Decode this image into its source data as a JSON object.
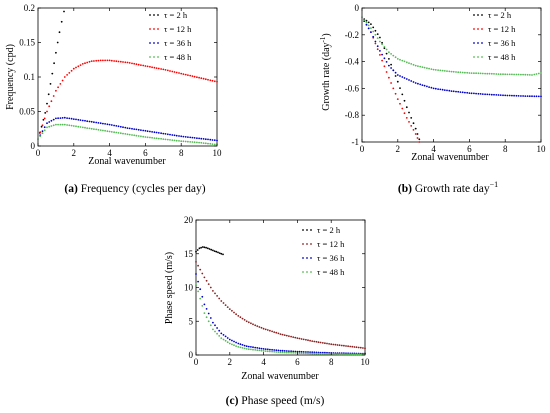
{
  "chart_data": [
    {
      "type": "scatter",
      "caption_label": "(a)",
      "caption_text": "Frequency (cycles per day)",
      "xlabel": "Zonal wavenumber",
      "ylabel": "Frequency (cpd)",
      "xlim": [
        0,
        10
      ],
      "ylim": [
        0,
        0.2
      ],
      "xticks": [
        "0",
        "2",
        "4",
        "6",
        "8",
        "10"
      ],
      "yticks": [
        "0",
        "0.05",
        "0.1",
        "0.15",
        "0.2"
      ],
      "xtick_values": [
        0,
        2,
        4,
        6,
        8,
        10
      ],
      "ytick_values": [
        0,
        0.05,
        0.1,
        0.15,
        0.2
      ],
      "legend_position": "top-right",
      "series": [
        {
          "name": "τ = 2 h",
          "color": "#000000",
          "points": [
            [
              0,
              0.01
            ],
            [
              0.2,
              0.028
            ],
            [
              0.4,
              0.048
            ],
            [
              0.6,
              0.075
            ],
            [
              0.8,
              0.105
            ],
            [
              1.0,
              0.135
            ],
            [
              1.2,
              0.165
            ],
            [
              1.45,
              0.195
            ]
          ]
        },
        {
          "name": "τ = 12 h",
          "color": "#ff0000",
          "points": [
            [
              0,
              0.01
            ],
            [
              0.5,
              0.05
            ],
            [
              1,
              0.08
            ],
            [
              1.5,
              0.1
            ],
            [
              2,
              0.112
            ],
            [
              2.5,
              0.119
            ],
            [
              3,
              0.123
            ],
            [
              3.5,
              0.124
            ],
            [
              4,
              0.124
            ],
            [
              5,
              0.121
            ],
            [
              6,
              0.116
            ],
            [
              7,
              0.111
            ],
            [
              8,
              0.105
            ],
            [
              9,
              0.099
            ],
            [
              10,
              0.093
            ]
          ]
        },
        {
          "name": "τ = 36 h",
          "color": "#0000cc",
          "points": [
            [
              0,
              0.01
            ],
            [
              0.5,
              0.033
            ],
            [
              1,
              0.04
            ],
            [
              1.5,
              0.041
            ],
            [
              2,
              0.039
            ],
            [
              3,
              0.035
            ],
            [
              4,
              0.031
            ],
            [
              5,
              0.026
            ],
            [
              6,
              0.022
            ],
            [
              7,
              0.018
            ],
            [
              8,
              0.014
            ],
            [
              9,
              0.011
            ],
            [
              10,
              0.008
            ]
          ]
        },
        {
          "name": "τ = 48 h",
          "color": "#55bb55",
          "points": [
            [
              0,
              0.01
            ],
            [
              0.5,
              0.027
            ],
            [
              1,
              0.031
            ],
            [
              1.5,
              0.031
            ],
            [
              2,
              0.029
            ],
            [
              3,
              0.025
            ],
            [
              4,
              0.021
            ],
            [
              5,
              0.017
            ],
            [
              6,
              0.013
            ],
            [
              7,
              0.01
            ],
            [
              8,
              0.007
            ],
            [
              9,
              0.005
            ],
            [
              10,
              0.002
            ]
          ]
        }
      ]
    },
    {
      "type": "scatter",
      "caption_label": "(b)",
      "caption_text": "Growth rate day",
      "caption_sup": "−1",
      "xlabel": "Zonal wavenumber",
      "ylabel": "Growth rate (day",
      "ylabel_sup": "-1",
      "ylabel_close": ")",
      "xlim": [
        0,
        10
      ],
      "ylim": [
        -1,
        0
      ],
      "xticks": [
        "0",
        "2",
        "4",
        "6",
        "8",
        "10"
      ],
      "yticks": [
        "0",
        "-0.2",
        "-0.4",
        "-0.6",
        "-0.8",
        "-1"
      ],
      "xtick_values": [
        0,
        2,
        4,
        6,
        8,
        10
      ],
      "ytick_values": [
        0,
        -0.2,
        -0.4,
        -0.6,
        -0.8,
        -1
      ],
      "legend_position": "top-right",
      "series": [
        {
          "name": "τ = 2 h",
          "color": "#000000",
          "points": [
            [
              0,
              -0.07
            ],
            [
              0.5,
              -0.12
            ],
            [
              1,
              -0.22
            ],
            [
              1.5,
              -0.38
            ],
            [
              2,
              -0.55
            ],
            [
              2.5,
              -0.74
            ],
            [
              3,
              -0.9
            ],
            [
              3.2,
              -0.98
            ]
          ]
        },
        {
          "name": "τ = 12 h",
          "color": "#ff0000",
          "points": [
            [
              0,
              -0.07
            ],
            [
              0.5,
              -0.18
            ],
            [
              1,
              -0.35
            ],
            [
              1.5,
              -0.52
            ],
            [
              2,
              -0.68
            ],
            [
              2.5,
              -0.82
            ],
            [
              3,
              -0.94
            ],
            [
              3.2,
              -1.0
            ]
          ]
        },
        {
          "name": "τ = 36 h",
          "color": "#0000cc",
          "points": [
            [
              0,
              -0.07
            ],
            [
              0.5,
              -0.18
            ],
            [
              1,
              -0.32
            ],
            [
              1.5,
              -0.43
            ],
            [
              2,
              -0.5
            ],
            [
              3,
              -0.56
            ],
            [
              4,
              -0.6
            ],
            [
              5,
              -0.62
            ],
            [
              6,
              -0.635
            ],
            [
              7,
              -0.645
            ],
            [
              8,
              -0.652
            ],
            [
              9,
              -0.657
            ],
            [
              10,
              -0.66
            ]
          ]
        },
        {
          "name": "τ = 48 h",
          "color": "#55bb55",
          "points": [
            [
              0,
              -0.07
            ],
            [
              0.5,
              -0.15
            ],
            [
              1,
              -0.25
            ],
            [
              1.5,
              -0.33
            ],
            [
              2,
              -0.38
            ],
            [
              3,
              -0.43
            ],
            [
              4,
              -0.46
            ],
            [
              5,
              -0.475
            ],
            [
              6,
              -0.485
            ],
            [
              7,
              -0.49
            ],
            [
              8,
              -0.495
            ],
            [
              9,
              -0.497
            ],
            [
              9.5,
              -0.5
            ],
            [
              10,
              -0.485
            ]
          ]
        }
      ]
    },
    {
      "type": "scatter",
      "caption_label": "(c)",
      "caption_text": "Phase speed (m/s)",
      "xlabel": "Zonal wavenumber",
      "ylabel": "Phase speed (m/s)",
      "xlim": [
        0,
        10
      ],
      "ylim": [
        0,
        20
      ],
      "xticks": [
        "0",
        "2",
        "4",
        "6",
        "8",
        "10"
      ],
      "yticks": [
        "0",
        "5",
        "10",
        "15",
        "20"
      ],
      "xtick_values": [
        0,
        2,
        4,
        6,
        8,
        10
      ],
      "ytick_values": [
        0,
        5,
        10,
        15,
        20
      ],
      "legend_position": "top-right",
      "series": [
        {
          "name": "τ = 2 h",
          "color": "#000000",
          "points": [
            [
              0,
              15.3
            ],
            [
              0.2,
              15.8
            ],
            [
              0.4,
              16.0
            ],
            [
              0.6,
              15.9
            ],
            [
              0.8,
              15.7
            ],
            [
              1.0,
              15.5
            ],
            [
              1.2,
              15.3
            ],
            [
              1.4,
              15.1
            ],
            [
              1.6,
              14.9
            ]
          ]
        },
        {
          "name": "τ = 12 h",
          "color": "#8b2020",
          "points": [
            [
              0,
              13.8
            ],
            [
              0.5,
              11.5
            ],
            [
              1,
              9.5
            ],
            [
              1.5,
              8.0
            ],
            [
              2,
              6.8
            ],
            [
              2.5,
              5.8
            ],
            [
              3,
              5.0
            ],
            [
              3.5,
              4.4
            ],
            [
              4,
              3.9
            ],
            [
              5,
              3.1
            ],
            [
              6,
              2.5
            ],
            [
              7,
              2.0
            ],
            [
              8,
              1.6
            ],
            [
              9,
              1.3
            ],
            [
              10,
              1.0
            ]
          ]
        },
        {
          "name": "τ = 36 h",
          "color": "#0000cc",
          "points": [
            [
              0,
              12.0
            ],
            [
              0.5,
              7.5
            ],
            [
              1,
              4.8
            ],
            [
              1.5,
              3.2
            ],
            [
              2,
              2.3
            ],
            [
              2.5,
              1.7
            ],
            [
              3,
              1.3
            ],
            [
              4,
              0.9
            ],
            [
              5,
              0.65
            ],
            [
              6,
              0.5
            ],
            [
              7,
              0.4
            ],
            [
              8,
              0.3
            ],
            [
              9,
              0.25
            ],
            [
              10,
              0.2
            ]
          ]
        },
        {
          "name": "τ = 48 h",
          "color": "#55bb55",
          "points": [
            [
              0,
              10.5
            ],
            [
              0.5,
              6.2
            ],
            [
              1,
              3.8
            ],
            [
              1.5,
              2.5
            ],
            [
              2,
              1.7
            ],
            [
              2.5,
              1.2
            ],
            [
              3,
              0.9
            ],
            [
              4,
              0.6
            ],
            [
              5,
              0.4
            ],
            [
              6,
              0.3
            ],
            [
              7,
              0.2
            ],
            [
              8,
              0.15
            ],
            [
              9,
              0.1
            ],
            [
              10,
              0.08
            ]
          ]
        }
      ]
    }
  ]
}
